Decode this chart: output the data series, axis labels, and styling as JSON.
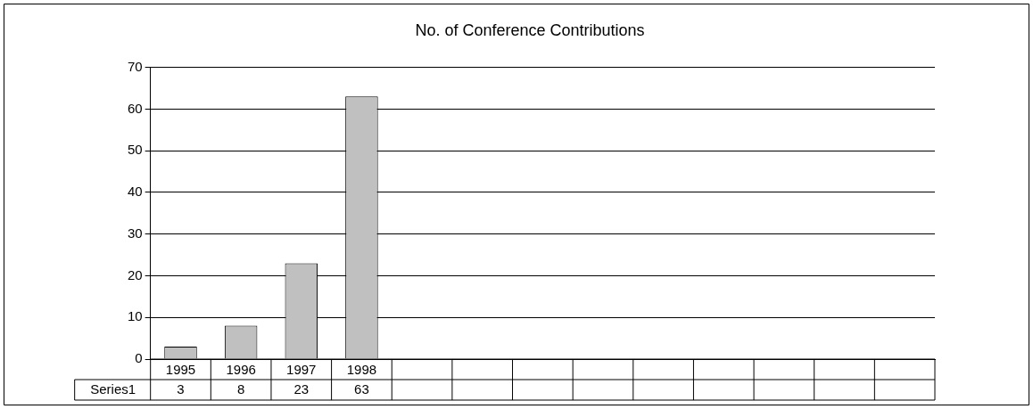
{
  "chart_data": {
    "type": "bar",
    "title": "No. of Conference Contributions",
    "categories": [
      "1995",
      "1996",
      "1997",
      "1998",
      null,
      null,
      null,
      null,
      null,
      null,
      null,
      null,
      null
    ],
    "series": [
      {
        "name": "Series1",
        "color": "#c0c0c0",
        "values": [
          3,
          8,
          23,
          63,
          null,
          null,
          null,
          null,
          null,
          null,
          null,
          null,
          null
        ]
      }
    ],
    "ylim": [
      0,
      70
    ],
    "yticks": [
      0,
      10,
      20,
      30,
      40,
      50,
      60,
      70
    ],
    "grid": "y",
    "legend": false,
    "data_labels": true
  }
}
